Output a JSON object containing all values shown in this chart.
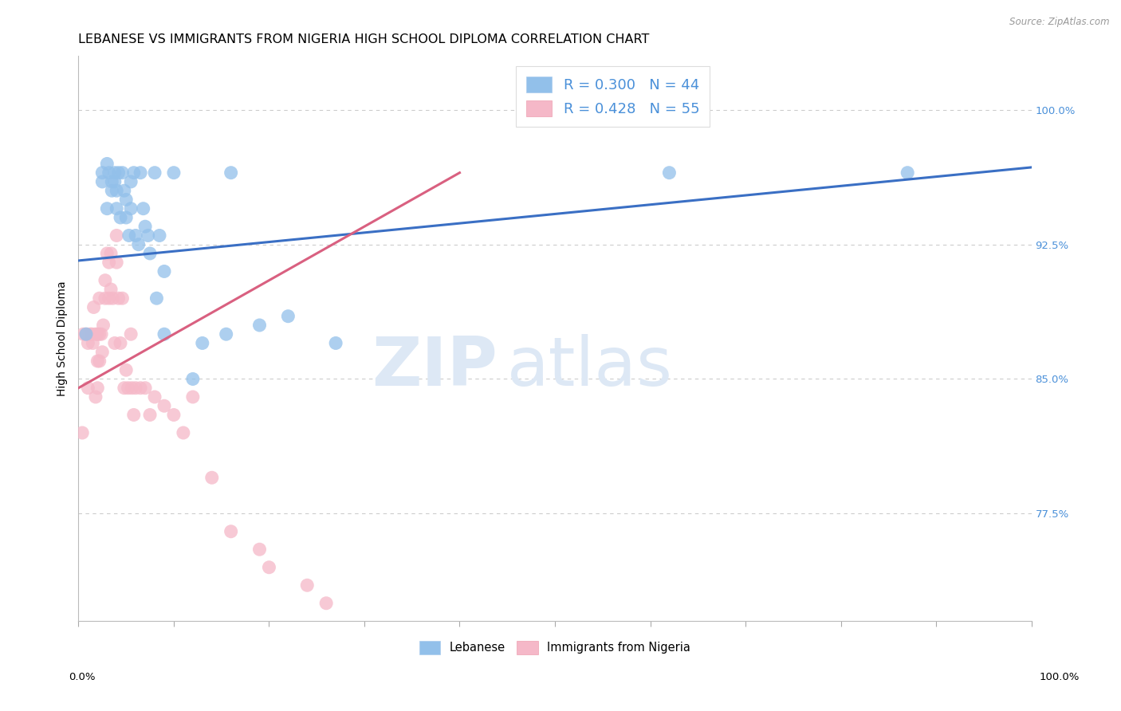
{
  "title": "LEBANESE VS IMMIGRANTS FROM NIGERIA HIGH SCHOOL DIPLOMA CORRELATION CHART",
  "source": "Source: ZipAtlas.com",
  "ylabel": "High School Diploma",
  "ytick_labels": [
    "100.0%",
    "92.5%",
    "85.0%",
    "77.5%"
  ],
  "ytick_values": [
    1.0,
    0.925,
    0.85,
    0.775
  ],
  "xlim": [
    0.0,
    1.0
  ],
  "ylim": [
    0.715,
    1.03
  ],
  "legend1_label": "R = 0.300   N = 44",
  "legend2_label": "R = 0.428   N = 55",
  "legend_color1": "#92c0ea",
  "legend_color2": "#f5b8c8",
  "scatter_color_blue": "#92c0ea",
  "scatter_color_pink": "#f5b8c8",
  "line_color_blue": "#3a6fc4",
  "line_color_pink": "#d96080",
  "watermark_zip": "ZIP",
  "watermark_atlas": "atlas",
  "watermark_color": "#dde8f5",
  "bottom_label_blue": "Lebanese",
  "bottom_label_pink": "Immigrants from Nigeria",
  "grid_color": "#cccccc",
  "title_fontsize": 11.5,
  "axis_label_fontsize": 10,
  "tick_fontsize": 9.5,
  "right_tick_color": "#4a90d9",
  "blue_x": [
    0.008,
    0.025,
    0.025,
    0.03,
    0.03,
    0.032,
    0.035,
    0.035,
    0.038,
    0.038,
    0.04,
    0.04,
    0.042,
    0.044,
    0.046,
    0.048,
    0.05,
    0.05,
    0.053,
    0.055,
    0.055,
    0.058,
    0.06,
    0.063,
    0.065,
    0.068,
    0.07,
    0.073,
    0.075,
    0.08,
    0.082,
    0.085,
    0.09,
    0.09,
    0.1,
    0.12,
    0.13,
    0.155,
    0.16,
    0.19,
    0.22,
    0.27,
    0.62,
    0.87
  ],
  "blue_y": [
    0.875,
    0.965,
    0.96,
    0.945,
    0.97,
    0.965,
    0.96,
    0.955,
    0.965,
    0.96,
    0.955,
    0.945,
    0.965,
    0.94,
    0.965,
    0.955,
    0.95,
    0.94,
    0.93,
    0.96,
    0.945,
    0.965,
    0.93,
    0.925,
    0.965,
    0.945,
    0.935,
    0.93,
    0.92,
    0.965,
    0.895,
    0.93,
    0.91,
    0.875,
    0.965,
    0.85,
    0.87,
    0.875,
    0.965,
    0.88,
    0.885,
    0.87,
    0.965,
    0.965
  ],
  "pink_x": [
    0.004,
    0.005,
    0.008,
    0.01,
    0.01,
    0.012,
    0.014,
    0.015,
    0.016,
    0.018,
    0.018,
    0.02,
    0.02,
    0.02,
    0.022,
    0.022,
    0.022,
    0.024,
    0.025,
    0.026,
    0.028,
    0.028,
    0.03,
    0.032,
    0.032,
    0.034,
    0.034,
    0.036,
    0.038,
    0.04,
    0.04,
    0.042,
    0.044,
    0.046,
    0.048,
    0.05,
    0.052,
    0.055,
    0.056,
    0.058,
    0.06,
    0.065,
    0.07,
    0.075,
    0.08,
    0.09,
    0.1,
    0.11,
    0.12,
    0.14,
    0.16,
    0.19,
    0.2,
    0.24,
    0.26
  ],
  "pink_y": [
    0.82,
    0.875,
    0.875,
    0.87,
    0.845,
    0.875,
    0.875,
    0.87,
    0.89,
    0.875,
    0.84,
    0.875,
    0.86,
    0.845,
    0.895,
    0.875,
    0.86,
    0.875,
    0.865,
    0.88,
    0.905,
    0.895,
    0.92,
    0.915,
    0.895,
    0.92,
    0.9,
    0.895,
    0.87,
    0.93,
    0.915,
    0.895,
    0.87,
    0.895,
    0.845,
    0.855,
    0.845,
    0.875,
    0.845,
    0.83,
    0.845,
    0.845,
    0.845,
    0.83,
    0.84,
    0.835,
    0.83,
    0.82,
    0.84,
    0.795,
    0.765,
    0.755,
    0.745,
    0.735,
    0.725
  ],
  "blue_line_x": [
    0.0,
    1.0
  ],
  "blue_line_y": [
    0.916,
    0.968
  ],
  "pink_line_x": [
    0.0,
    0.4
  ],
  "pink_line_y": [
    0.845,
    0.965
  ]
}
